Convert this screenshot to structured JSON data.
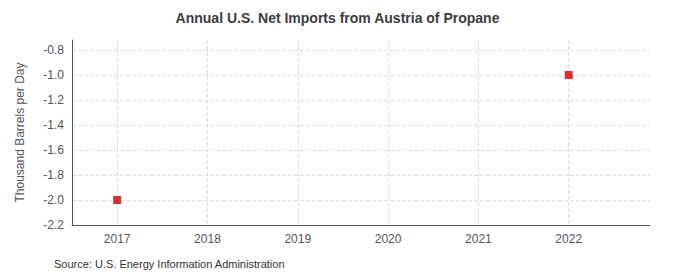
{
  "chart_data": {
    "type": "scatter",
    "title": "Annual U.S. Net Imports from Austria of Propane",
    "ylabel": "Thousand Barrels per Day",
    "annotation": "Source: U.S. Energy Information Administration",
    "x": [
      2017,
      2022
    ],
    "values": [
      -2.0,
      -1.0
    ],
    "color": "#cc0000",
    "marker": "square",
    "xlim": [
      2016.5,
      2022.9
    ],
    "xticks": [
      2017,
      2018,
      2019,
      2020,
      2021,
      2022
    ],
    "ylim": [
      -2.2,
      -0.72
    ],
    "yticks": [
      -2.2,
      {
        "value": -2.0,
        "label": "-2.0"
      },
      -1.8,
      -1.6,
      -1.4,
      -1.2,
      {
        "value": -1.0,
        "label": "-1.0"
      },
      -0.8
    ],
    "grid": true
  }
}
